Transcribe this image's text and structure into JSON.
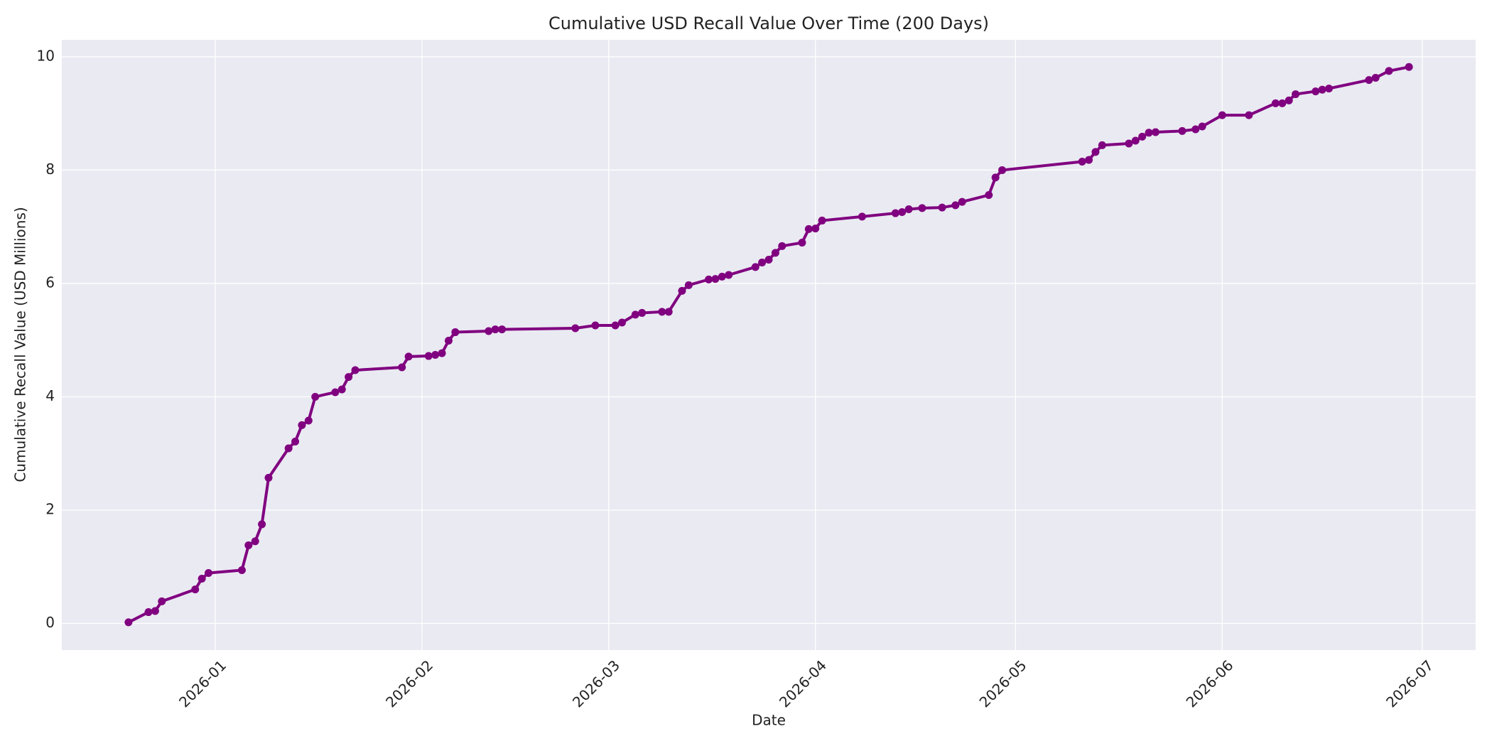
{
  "chart_data": {
    "type": "line",
    "title": "Cumulative USD Recall Value Over Time (200 Days)",
    "xlabel": "Date",
    "ylabel": "Cumulative Recall Value (USD Millions)",
    "x": [
      "2025-12-19",
      "2025-12-22",
      "2025-12-23",
      "2025-12-24",
      "2025-12-29",
      "2025-12-30",
      "2025-12-31",
      "2026-01-05",
      "2026-01-06",
      "2026-01-07",
      "2026-01-08",
      "2026-01-09",
      "2026-01-12",
      "2026-01-13",
      "2026-01-14",
      "2026-01-15",
      "2026-01-16",
      "2026-01-19",
      "2026-01-20",
      "2026-01-21",
      "2026-01-22",
      "2026-01-29",
      "2026-01-30",
      "2026-02-02",
      "2026-02-03",
      "2026-02-04",
      "2026-02-05",
      "2026-02-06",
      "2026-02-11",
      "2026-02-12",
      "2026-02-13",
      "2026-02-24",
      "2026-02-27",
      "2026-03-02",
      "2026-03-03",
      "2026-03-05",
      "2026-03-06",
      "2026-03-09",
      "2026-03-10",
      "2026-03-12",
      "2026-03-13",
      "2026-03-16",
      "2026-03-17",
      "2026-03-18",
      "2026-03-19",
      "2026-03-23",
      "2026-03-24",
      "2026-03-25",
      "2026-03-26",
      "2026-03-27",
      "2026-03-30",
      "2026-03-31",
      "2026-04-01",
      "2026-04-02",
      "2026-04-08",
      "2026-04-13",
      "2026-04-14",
      "2026-04-15",
      "2026-04-17",
      "2026-04-20",
      "2026-04-22",
      "2026-04-23",
      "2026-04-27",
      "2026-04-28",
      "2026-04-29",
      "2026-05-11",
      "2026-05-12",
      "2026-05-13",
      "2026-05-14",
      "2026-05-18",
      "2026-05-19",
      "2026-05-20",
      "2026-05-21",
      "2026-05-22",
      "2026-05-26",
      "2026-05-28",
      "2026-05-29",
      "2026-06-01",
      "2026-06-05",
      "2026-06-09",
      "2026-06-10",
      "2026-06-11",
      "2026-06-12",
      "2026-06-15",
      "2026-06-16",
      "2026-06-17",
      "2026-06-23",
      "2026-06-24",
      "2026-06-26",
      "2026-06-29"
    ],
    "series": [
      {
        "name": "Cumulative Recall Value",
        "color": "#800080",
        "values": [
          0.02,
          0.2,
          0.22,
          0.39,
          0.6,
          0.79,
          0.89,
          0.94,
          1.38,
          1.45,
          1.75,
          2.57,
          3.09,
          3.21,
          3.5,
          3.58,
          4.0,
          4.08,
          4.13,
          4.35,
          4.47,
          4.52,
          4.71,
          4.72,
          4.74,
          4.77,
          4.99,
          5.14,
          5.16,
          5.19,
          5.19,
          5.21,
          5.26,
          5.26,
          5.31,
          5.45,
          5.48,
          5.5,
          5.5,
          5.87,
          5.97,
          6.07,
          6.08,
          6.12,
          6.15,
          6.29,
          6.37,
          6.42,
          6.54,
          6.66,
          6.72,
          6.96,
          6.97,
          7.11,
          7.18,
          7.24,
          7.26,
          7.31,
          7.33,
          7.34,
          7.38,
          7.44,
          7.56,
          7.87,
          8.0,
          8.15,
          8.18,
          8.32,
          8.44,
          8.47,
          8.52,
          8.59,
          8.66,
          8.67,
          8.69,
          8.72,
          8.77,
          8.97,
          8.97,
          9.18,
          9.18,
          9.23,
          9.34,
          9.39,
          9.42,
          9.44,
          9.59,
          9.63,
          9.75,
          9.82
        ]
      }
    ],
    "xlim": [
      "2025-12-09",
      "2026-07-09"
    ],
    "xticks": [
      {
        "value": "2026-01-01",
        "label": "2026-01"
      },
      {
        "value": "2026-02-01",
        "label": "2026-02"
      },
      {
        "value": "2026-03-01",
        "label": "2026-03"
      },
      {
        "value": "2026-04-01",
        "label": "2026-04"
      },
      {
        "value": "2026-05-01",
        "label": "2026-05"
      },
      {
        "value": "2026-06-01",
        "label": "2026-06"
      },
      {
        "value": "2026-07-01",
        "label": "2026-07"
      }
    ],
    "ylim": [
      -0.47,
      10.3
    ],
    "yticks": [
      0,
      2,
      4,
      6,
      8,
      10
    ],
    "grid": true
  }
}
